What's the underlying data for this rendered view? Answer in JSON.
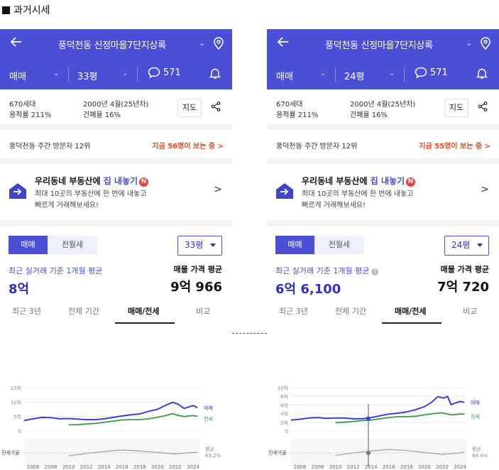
{
  "page_heading": "과거시세",
  "panels": [
    {
      "header": {
        "title": "풍덕천동 신정마을7단지상록",
        "deal_type": "매매",
        "size": "33평",
        "comments": "571"
      },
      "info": {
        "households": "670세대",
        "floor_area_ratio": "용적률 211%",
        "built": "2000년 4월(25년차)",
        "coverage_ratio": "건폐율 16%",
        "map_label": "지도"
      },
      "visitor": {
        "rank_text": "풍덕천동 주간 방문자 12위",
        "live_text": "지금 56명이 보는 중 >"
      },
      "promo": {
        "title_prefix": "우리동네 부동산에 ",
        "title_highlight": "집 내놓기",
        "badge": "N",
        "line1": "최대 10곳의 부동산에 한 번에 내놓고",
        "line2": "빠르게 거래해보세요!"
      },
      "deal_tabs": [
        "매매",
        "전월세"
      ],
      "size_select": "33평",
      "recent_label": "최근 실거래 기준 1개월 평균",
      "recent_value": "8억",
      "listing_label": "매물 가격 평균",
      "listing_value": "9억 966",
      "period_tabs": [
        "최근 3년",
        "전체 기간",
        "매매/전세",
        "비교"
      ],
      "period_active": 2
    },
    {
      "header": {
        "title": "풍덕천동 신정마을7단지상록",
        "deal_type": "매매",
        "size": "24평",
        "comments": "571"
      },
      "info": {
        "households": "670세대",
        "floor_area_ratio": "용적률 211%",
        "built": "2000년 4월(25년차)",
        "coverage_ratio": "건폐율 16%",
        "map_label": "지도"
      },
      "visitor": {
        "rank_text": "풍덕천동 주간 방문자 12위",
        "live_text": "지금 55명이 보는 중 >"
      },
      "promo": {
        "title_prefix": "우리동네 부동산에 ",
        "title_highlight": "집 내놓기",
        "badge": "N",
        "line1": "최대 10곳의 부동산에 한 번에 내놓고",
        "line2": "빠르게 거래해보세요!"
      },
      "deal_tabs": [
        "매매",
        "전월세"
      ],
      "size_select": "24평",
      "recent_label": "최근 실거래 기준 1개월 평균",
      "recent_value": "6억 6,100",
      "listing_label": "매물 가격 평균",
      "listing_value": "7억 720",
      "period_tabs": [
        "최근 3년",
        "전체 기간",
        "매매/전세",
        "비교"
      ],
      "period_active": 2
    }
  ],
  "colors": {
    "accent": "#4a4fd6",
    "sale_line": "#3b3fd8",
    "jeonse_line": "#3a9a4a",
    "ratio_line": "#999999",
    "hot": "#e8491d"
  },
  "chart_data": [
    {
      "type": "line",
      "x_ticks": [
        "2006",
        "2008",
        "2010",
        "2012",
        "2014",
        "2016",
        "2018",
        "2020",
        "2022",
        "2024"
      ],
      "y_ticks": [
        "0",
        "5억",
        "10억",
        "15억"
      ],
      "ylim": [
        0,
        15
      ],
      "lower_axis_label": "전세가율",
      "ratio_label": "평균",
      "ratio_value": "63.2%",
      "series": [
        {
          "name": "매매",
          "x": [
            2005.0,
            2006.0,
            2007.0,
            2008.0,
            2009.0,
            2010.0,
            2011.0,
            2012.0,
            2013.0,
            2014.0,
            2015.0,
            2016.0,
            2017.0,
            2018.0,
            2019.0,
            2020.0,
            2021.0,
            2021.7,
            2022.3,
            2023.0,
            2024.0,
            2024.5
          ],
          "values": [
            3.6,
            4.2,
            4.7,
            4.6,
            4.2,
            4.3,
            4.1,
            3.9,
            3.9,
            4.2,
            4.7,
            5.2,
            5.6,
            5.9,
            6.8,
            7.5,
            9.0,
            9.9,
            9.3,
            7.8,
            8.8,
            8.1
          ]
        },
        {
          "name": "전세",
          "x": [
            2010.0,
            2011.0,
            2012.0,
            2013.0,
            2014.0,
            2015.0,
            2016.0,
            2017.0,
            2018.0,
            2019.0,
            2020.0,
            2021.0,
            2021.7,
            2022.3,
            2023.0,
            2024.0,
            2024.5
          ],
          "values": [
            2.1,
            2.2,
            2.4,
            2.6,
            3.0,
            3.4,
            3.8,
            3.9,
            3.9,
            4.2,
            4.7,
            5.4,
            6.0,
            5.4,
            5.0,
            5.3,
            5.1
          ]
        },
        {
          "name": "전세가율",
          "x": [
            2010.0,
            2012.0,
            2014.0,
            2016.0,
            2018.0,
            2020.0,
            2022.0,
            2024.0,
            2024.5
          ],
          "values": [
            48,
            58,
            66,
            72,
            68,
            62,
            56,
            62,
            63
          ]
        }
      ]
    },
    {
      "type": "line",
      "x_ticks": [
        "2006",
        "2008",
        "2010",
        "2012",
        "2014",
        "2016",
        "2018",
        "2020",
        "2022",
        "2024"
      ],
      "y_ticks": [
        "0",
        "2억",
        "4억",
        "6억",
        "8억",
        "10억"
      ],
      "ylim": [
        0,
        10
      ],
      "lower_axis_label": "전세가율",
      "ratio_label": "평균",
      "ratio_value": "64.4%",
      "series": [
        {
          "name": "매매",
          "x": [
            2005.0,
            2006.0,
            2007.0,
            2008.0,
            2009.0,
            2010.0,
            2011.0,
            2012.0,
            2013.0,
            2014.0,
            2015.0,
            2016.0,
            2017.0,
            2018.0,
            2019.0,
            2020.0,
            2020.8,
            2021.5,
            2022.2,
            2022.6,
            2023.0,
            2024.0,
            2024.5
          ],
          "values": [
            2.5,
            2.7,
            3.0,
            3.1,
            2.9,
            3.0,
            3.0,
            2.8,
            2.8,
            3.1,
            3.5,
            3.9,
            4.1,
            4.4,
            4.9,
            5.6,
            6.6,
            7.9,
            7.6,
            8.0,
            6.1,
            6.8,
            6.6
          ]
        },
        {
          "name": "전세",
          "x": [
            2010.0,
            2011.0,
            2012.0,
            2013.0,
            2014.0,
            2015.0,
            2016.0,
            2017.0,
            2018.0,
            2019.0,
            2020.0,
            2021.0,
            2022.0,
            2023.0,
            2024.0,
            2024.5
          ],
          "values": [
            1.9,
            2.0,
            2.2,
            2.4,
            2.5,
            2.8,
            3.1,
            3.3,
            3.3,
            3.4,
            3.7,
            4.0,
            4.2,
            3.7,
            3.9,
            3.9
          ]
        },
        {
          "name": "전세가율",
          "x": [
            2010.0,
            2012.0,
            2014.0,
            2016.0,
            2018.0,
            2020.0,
            2022.0,
            2024.0,
            2024.5
          ],
          "values": [
            50,
            60,
            68,
            74,
            70,
            62,
            54,
            60,
            64
          ]
        }
      ]
    }
  ]
}
